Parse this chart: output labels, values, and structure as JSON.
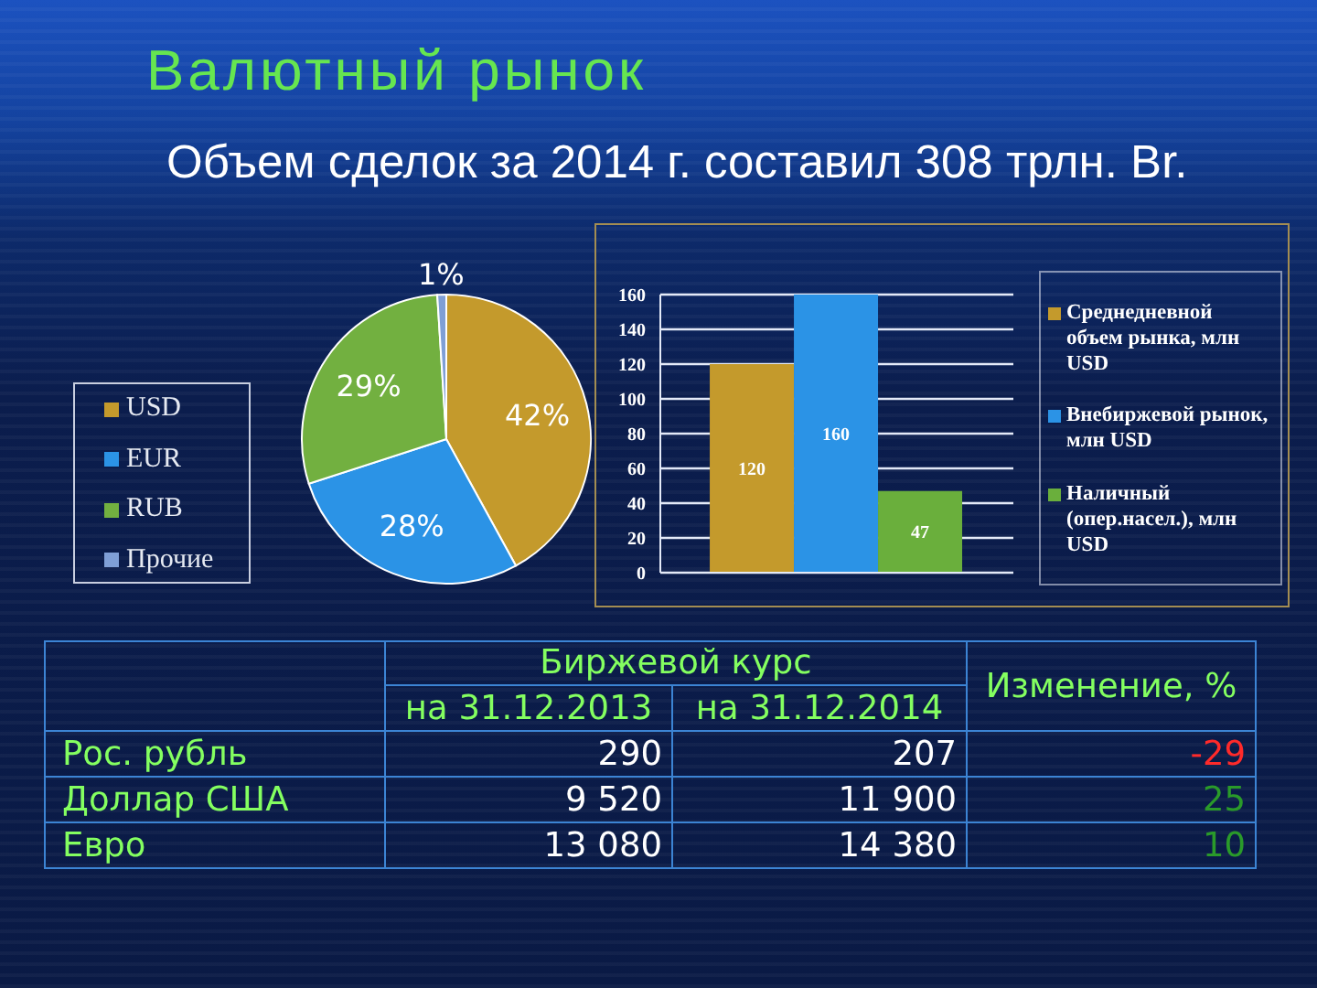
{
  "chart_data": [
    {
      "type": "pie",
      "title": "Валютный рынок",
      "subtitle": "Объем сделок за 2014 г. составил 308 трлн. Br.",
      "categories": [
        "USD",
        "EUR",
        "RUB",
        "Прочие"
      ],
      "values": [
        42,
        28,
        29,
        1
      ],
      "value_labels": [
        "42%",
        "28%",
        "29%",
        "1%"
      ],
      "colors": [
        "#c49a2c",
        "#2b93e6",
        "#72b040",
        "#7f9fd6"
      ],
      "legend": "left"
    },
    {
      "type": "bar",
      "categories": [
        null
      ],
      "series": [
        {
          "name": "Среднедневной объем рынка, млн USD",
          "color": "#c49a2c",
          "values": [
            120
          ]
        },
        {
          "name": "Внебиржевой рынок, млн USD",
          "color": "#2b93e6",
          "values": [
            160
          ]
        },
        {
          "name": "Наличный (опер.насел.), млн USD",
          "color": "#6aaf3c",
          "values": [
            47
          ]
        }
      ],
      "ylim": [
        0,
        160
      ],
      "yticks": [
        0,
        20,
        40,
        60,
        80,
        100,
        120,
        140,
        160
      ],
      "grid": "y",
      "legend": "right",
      "data_labels": true
    },
    {
      "type": "other",
      "title": "Биржевой курс",
      "categories": [
        "Рос. рубль",
        "Доллар США",
        "Евро"
      ],
      "series": [
        {
          "name": "на 31.12.2013",
          "values": [
            290,
            9520,
            13080
          ]
        },
        {
          "name": "на 31.12.2014",
          "values": [
            207,
            11900,
            14380
          ]
        },
        {
          "name": "Изменение, %",
          "colors": [
            "#ff2a2a",
            "#2a9a2a",
            "#2a9a2a"
          ],
          "values": [
            -29,
            25,
            10
          ]
        }
      ],
      "data_labels": true
    }
  ]
}
